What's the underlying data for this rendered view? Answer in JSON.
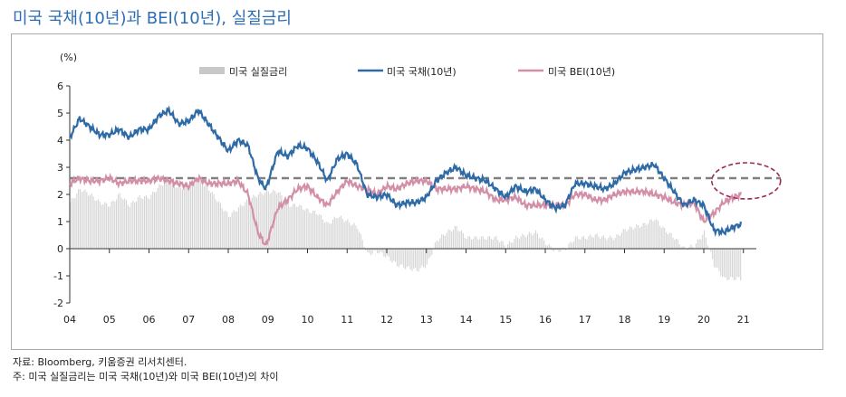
{
  "title": "미국 국채(10년)과 BEI(10년), 실질금리",
  "notes": [
    "자료: Bloomberg, 키움증권 리서치센터.",
    "주: 미국 실질금리는 미국 국채(10년)와 미국 BEI(10년)의 차이"
  ],
  "chart_data": {
    "type": "line",
    "ylabel": "(%)",
    "ylim": [
      -2,
      6
    ],
    "yticks": [
      6,
      5,
      4,
      3,
      2,
      1,
      0,
      -1,
      -2
    ],
    "xticks": [
      "04",
      "05",
      "06",
      "07",
      "08",
      "09",
      "10",
      "11",
      "12",
      "13",
      "14",
      "15",
      "16",
      "17",
      "18",
      "19",
      "20",
      "21"
    ],
    "xrange": [
      2004,
      2021.4
    ],
    "reference_line": {
      "value": 2.6,
      "style": "dashed",
      "color": "#808080"
    },
    "annotation": {
      "type": "dashed-ellipse",
      "x_center": 2021.0,
      "y_center": 2.3,
      "color": "#9c2a5a"
    },
    "legend_placement": "top",
    "x": [
      2004,
      2004.25,
      2004.5,
      2004.75,
      2005,
      2005.25,
      2005.5,
      2005.75,
      2006,
      2006.25,
      2006.5,
      2006.75,
      2007,
      2007.25,
      2007.5,
      2007.75,
      2008,
      2008.25,
      2008.5,
      2008.75,
      2008.95,
      2009.25,
      2009.5,
      2009.75,
      2010,
      2010.25,
      2010.5,
      2010.75,
      2011,
      2011.25,
      2011.5,
      2011.75,
      2012,
      2012.25,
      2012.5,
      2012.75,
      2013,
      2013.25,
      2013.5,
      2013.75,
      2014,
      2014.25,
      2014.5,
      2014.75,
      2015,
      2015.25,
      2015.5,
      2015.75,
      2016,
      2016.25,
      2016.5,
      2016.75,
      2017,
      2017.25,
      2017.5,
      2017.75,
      2018,
      2018.25,
      2018.5,
      2018.75,
      2019,
      2019.25,
      2019.5,
      2019.75,
      2020,
      2020.25,
      2020.5,
      2020.75,
      2020.95
    ],
    "series": [
      {
        "name": "미국 실질금리",
        "kind": "bar",
        "color": "#c8c8c8",
        "values": "derived: 미국 국채(10년) - 미국 BEI(10년)"
      },
      {
        "name": "미국 국채(10년)",
        "kind": "line",
        "color": "#2e6aa6",
        "values": [
          4.1,
          4.8,
          4.5,
          4.2,
          4.2,
          4.4,
          4.1,
          4.4,
          4.4,
          4.9,
          5.1,
          4.6,
          4.7,
          5.1,
          4.6,
          4.1,
          3.6,
          4.0,
          3.8,
          2.6,
          2.2,
          3.6,
          3.4,
          3.8,
          3.7,
          3.2,
          2.5,
          3.3,
          3.5,
          3.1,
          2.0,
          1.9,
          2.0,
          1.6,
          1.7,
          1.7,
          1.9,
          2.5,
          2.8,
          3.0,
          2.7,
          2.6,
          2.5,
          2.2,
          1.9,
          2.3,
          2.1,
          2.2,
          1.8,
          1.5,
          1.6,
          2.4,
          2.4,
          2.3,
          2.2,
          2.4,
          2.8,
          2.9,
          3.0,
          3.1,
          2.6,
          2.1,
          1.6,
          1.8,
          1.6,
          0.7,
          0.6,
          0.8,
          0.9
        ]
      },
      {
        "name": "미국 BEI(10년)",
        "kind": "line",
        "color": "#d48fa8",
        "values": [
          2.4,
          2.6,
          2.5,
          2.5,
          2.6,
          2.4,
          2.5,
          2.5,
          2.5,
          2.6,
          2.5,
          2.4,
          2.3,
          2.6,
          2.4,
          2.4,
          2.4,
          2.5,
          2.0,
          0.6,
          0.1,
          1.5,
          1.8,
          2.2,
          2.3,
          1.9,
          1.6,
          2.1,
          2.5,
          2.3,
          2.2,
          2.0,
          2.3,
          2.2,
          2.4,
          2.5,
          2.5,
          2.2,
          2.2,
          2.2,
          2.3,
          2.2,
          2.1,
          1.8,
          1.8,
          1.9,
          1.6,
          1.6,
          1.6,
          1.6,
          1.6,
          2.0,
          2.0,
          1.8,
          1.8,
          2.0,
          2.1,
          2.1,
          2.1,
          2.0,
          1.9,
          1.7,
          1.6,
          1.7,
          1.0,
          1.3,
          1.7,
          1.9,
          2.0
        ]
      }
    ]
  }
}
